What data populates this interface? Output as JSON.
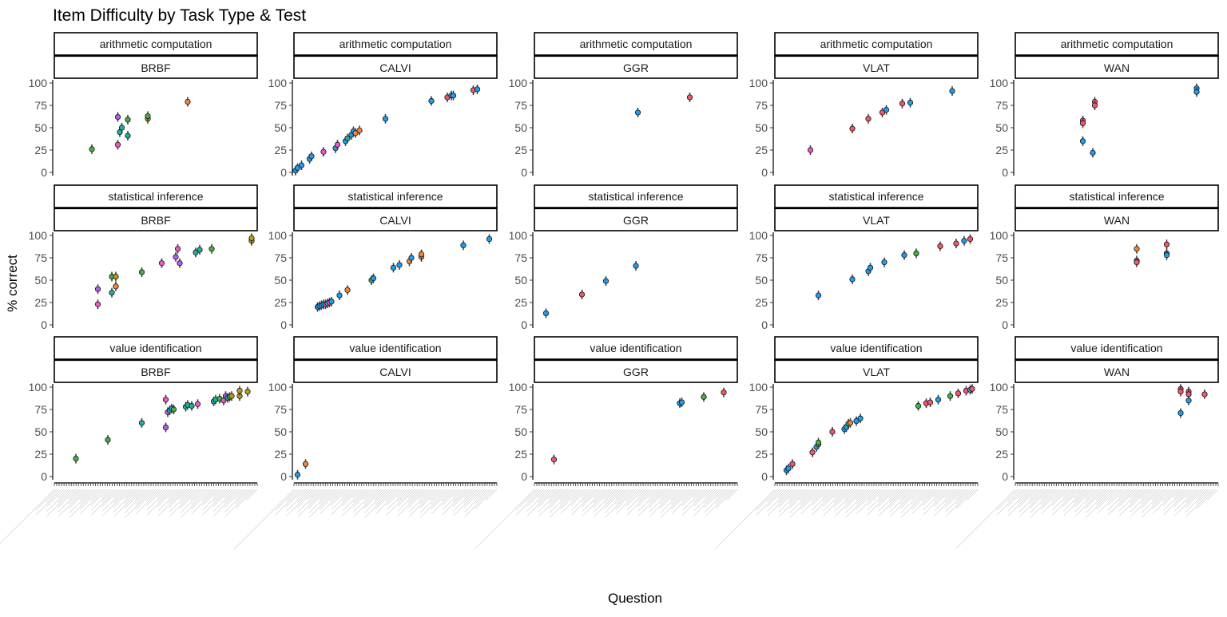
{
  "chart_data": {
    "type": "scatter",
    "title": "Item Difficulty by Task Type & Test",
    "xlabel": "Question",
    "ylabel": "% correct",
    "ylim": [
      0,
      100
    ],
    "yticks": [
      0,
      25,
      50,
      75,
      100
    ],
    "grid": false,
    "legend": "none",
    "error_bars": true,
    "x_tick_labels_shown": false,
    "x_scale": "question index (0-100)",
    "row_facets": [
      "arithmetic computation",
      "statistical inference",
      "value identification"
    ],
    "col_facets": [
      "BRBF",
      "CALVI",
      "GGR",
      "VLAT",
      "WAN"
    ],
    "point_colors": {
      "blue": "#1f9bf0",
      "red": "#f5546a",
      "orange": "#f0863c",
      "green": "#44b044",
      "olive": "#b89a1c",
      "purple": "#b05cf0",
      "magenta": "#f056c8",
      "teal": "#1cb09c"
    },
    "facets": [
      {
        "row": "arithmetic computation",
        "col": "BRBF",
        "points": [
          {
            "x": 18,
            "y": 26,
            "c": "green"
          },
          {
            "x": 31,
            "y": 31,
            "c": "magenta"
          },
          {
            "x": 31,
            "y": 62,
            "c": "purple"
          },
          {
            "x": 32,
            "y": 45,
            "c": "teal"
          },
          {
            "x": 33,
            "y": 50,
            "c": "teal"
          },
          {
            "x": 36,
            "y": 41,
            "c": "teal"
          },
          {
            "x": 36,
            "y": 59,
            "c": "green"
          },
          {
            "x": 46,
            "y": 60,
            "c": "olive"
          },
          {
            "x": 46,
            "y": 63,
            "c": "green"
          },
          {
            "x": 66,
            "y": 79,
            "c": "orange"
          }
        ]
      },
      {
        "row": "arithmetic computation",
        "col": "CALVI",
        "points": [
          {
            "x": 0,
            "y": 2,
            "c": "blue"
          },
          {
            "x": 1,
            "y": 5,
            "c": "blue"
          },
          {
            "x": 3,
            "y": 8,
            "c": "blue"
          },
          {
            "x": 7,
            "y": 15,
            "c": "blue"
          },
          {
            "x": 8,
            "y": 18,
            "c": "blue"
          },
          {
            "x": 14,
            "y": 23,
            "c": "magenta"
          },
          {
            "x": 20,
            "y": 27,
            "c": "blue"
          },
          {
            "x": 21,
            "y": 31,
            "c": "magenta"
          },
          {
            "x": 25,
            "y": 35,
            "c": "blue"
          },
          {
            "x": 26,
            "y": 38,
            "c": "teal"
          },
          {
            "x": 28,
            "y": 42,
            "c": "blue"
          },
          {
            "x": 29,
            "y": 46,
            "c": "blue"
          },
          {
            "x": 30,
            "y": 44,
            "c": "orange"
          },
          {
            "x": 32,
            "y": 47,
            "c": "orange"
          },
          {
            "x": 45,
            "y": 60,
            "c": "blue"
          },
          {
            "x": 68,
            "y": 80,
            "c": "blue"
          },
          {
            "x": 76,
            "y": 84,
            "c": "red"
          },
          {
            "x": 78,
            "y": 86,
            "c": "blue"
          },
          {
            "x": 79,
            "y": 86,
            "c": "blue"
          },
          {
            "x": 89,
            "y": 92,
            "c": "red"
          },
          {
            "x": 91,
            "y": 93,
            "c": "blue"
          }
        ]
      },
      {
        "row": "arithmetic computation",
        "col": "GGR",
        "points": [
          {
            "x": 51,
            "y": 67,
            "c": "blue"
          },
          {
            "x": 77,
            "y": 84,
            "c": "red"
          }
        ]
      },
      {
        "row": "arithmetic computation",
        "col": "VLAT",
        "points": [
          {
            "x": 17,
            "y": 25,
            "c": "magenta"
          },
          {
            "x": 38,
            "y": 49,
            "c": "red"
          },
          {
            "x": 46,
            "y": 60,
            "c": "red"
          },
          {
            "x": 53,
            "y": 67,
            "c": "red"
          },
          {
            "x": 55,
            "y": 70,
            "c": "blue"
          },
          {
            "x": 63,
            "y": 77,
            "c": "red"
          },
          {
            "x": 67,
            "y": 78,
            "c": "blue"
          },
          {
            "x": 88,
            "y": 91,
            "c": "blue"
          }
        ]
      },
      {
        "row": "arithmetic computation",
        "col": "WAN",
        "points": [
          {
            "x": 33,
            "y": 58,
            "c": "red"
          },
          {
            "x": 33,
            "y": 55,
            "c": "red"
          },
          {
            "x": 33,
            "y": 35,
            "c": "blue"
          },
          {
            "x": 38,
            "y": 22,
            "c": "blue"
          },
          {
            "x": 39,
            "y": 79,
            "c": "red"
          },
          {
            "x": 39,
            "y": 75,
            "c": "red"
          },
          {
            "x": 90,
            "y": 94,
            "c": "blue"
          },
          {
            "x": 90,
            "y": 90,
            "c": "blue"
          }
        ]
      },
      {
        "row": "statistical inference",
        "col": "BRBF",
        "points": [
          {
            "x": 21,
            "y": 23,
            "c": "magenta"
          },
          {
            "x": 21,
            "y": 40,
            "c": "purple"
          },
          {
            "x": 28,
            "y": 36,
            "c": "teal"
          },
          {
            "x": 28,
            "y": 54,
            "c": "green"
          },
          {
            "x": 30,
            "y": 43,
            "c": "orange"
          },
          {
            "x": 30,
            "y": 54,
            "c": "olive"
          },
          {
            "x": 43,
            "y": 59,
            "c": "green"
          },
          {
            "x": 53,
            "y": 69,
            "c": "magenta"
          },
          {
            "x": 60,
            "y": 76,
            "c": "purple"
          },
          {
            "x": 61,
            "y": 85,
            "c": "magenta"
          },
          {
            "x": 62,
            "y": 69,
            "c": "purple"
          },
          {
            "x": 70,
            "y": 81,
            "c": "teal"
          },
          {
            "x": 72,
            "y": 84,
            "c": "teal"
          },
          {
            "x": 78,
            "y": 85,
            "c": "green"
          },
          {
            "x": 98,
            "y": 94,
            "c": "olive"
          },
          {
            "x": 98,
            "y": 97,
            "c": "olive"
          }
        ]
      },
      {
        "row": "statistical inference",
        "col": "CALVI",
        "points": [
          {
            "x": 11,
            "y": 20,
            "c": "blue"
          },
          {
            "x": 12,
            "y": 21,
            "c": "blue"
          },
          {
            "x": 13,
            "y": 22,
            "c": "blue"
          },
          {
            "x": 14,
            "y": 23,
            "c": "blue"
          },
          {
            "x": 15,
            "y": 23,
            "c": "red"
          },
          {
            "x": 16,
            "y": 24,
            "c": "blue"
          },
          {
            "x": 17,
            "y": 25,
            "c": "magenta"
          },
          {
            "x": 18,
            "y": 26,
            "c": "blue"
          },
          {
            "x": 22,
            "y": 33,
            "c": "blue"
          },
          {
            "x": 26,
            "y": 39,
            "c": "orange"
          },
          {
            "x": 38,
            "y": 50,
            "c": "green"
          },
          {
            "x": 39,
            "y": 52,
            "c": "blue"
          },
          {
            "x": 49,
            "y": 64,
            "c": "blue"
          },
          {
            "x": 52,
            "y": 67,
            "c": "blue"
          },
          {
            "x": 57,
            "y": 71,
            "c": "orange"
          },
          {
            "x": 58,
            "y": 75,
            "c": "blue"
          },
          {
            "x": 63,
            "y": 76,
            "c": "orange"
          },
          {
            "x": 63,
            "y": 79,
            "c": "orange"
          },
          {
            "x": 84,
            "y": 89,
            "c": "blue"
          },
          {
            "x": 97,
            "y": 96,
            "c": "blue"
          }
        ]
      },
      {
        "row": "statistical inference",
        "col": "GGR",
        "points": [
          {
            "x": 5,
            "y": 13,
            "c": "blue"
          },
          {
            "x": 23,
            "y": 34,
            "c": "red"
          },
          {
            "x": 35,
            "y": 49,
            "c": "blue"
          },
          {
            "x": 50,
            "y": 66,
            "c": "blue"
          }
        ]
      },
      {
        "row": "statistical inference",
        "col": "VLAT",
        "points": [
          {
            "x": 21,
            "y": 33,
            "c": "blue"
          },
          {
            "x": 38,
            "y": 51,
            "c": "blue"
          },
          {
            "x": 46,
            "y": 60,
            "c": "blue"
          },
          {
            "x": 47,
            "y": 64,
            "c": "blue"
          },
          {
            "x": 54,
            "y": 70,
            "c": "blue"
          },
          {
            "x": 64,
            "y": 78,
            "c": "blue"
          },
          {
            "x": 70,
            "y": 80,
            "c": "green"
          },
          {
            "x": 82,
            "y": 88,
            "c": "red"
          },
          {
            "x": 90,
            "y": 91,
            "c": "red"
          },
          {
            "x": 94,
            "y": 94,
            "c": "blue"
          },
          {
            "x": 97,
            "y": 96,
            "c": "red"
          }
        ]
      },
      {
        "row": "statistical inference",
        "col": "WAN",
        "points": [
          {
            "x": 60,
            "y": 85,
            "c": "orange"
          },
          {
            "x": 60,
            "y": 72,
            "c": "teal"
          },
          {
            "x": 60,
            "y": 70,
            "c": "red"
          },
          {
            "x": 75,
            "y": 90,
            "c": "red"
          },
          {
            "x": 75,
            "y": 80,
            "c": "blue"
          },
          {
            "x": 75,
            "y": 78,
            "c": "blue"
          }
        ]
      },
      {
        "row": "value identification",
        "col": "BRBF",
        "points": [
          {
            "x": 10,
            "y": 20,
            "c": "green"
          },
          {
            "x": 26,
            "y": 41,
            "c": "green"
          },
          {
            "x": 43,
            "y": 60,
            "c": "teal"
          },
          {
            "x": 55,
            "y": 86,
            "c": "magenta"
          },
          {
            "x": 55,
            "y": 55,
            "c": "purple"
          },
          {
            "x": 56,
            "y": 72,
            "c": "purple"
          },
          {
            "x": 57,
            "y": 74,
            "c": "teal"
          },
          {
            "x": 58,
            "y": 76,
            "c": "blue"
          },
          {
            "x": 59,
            "y": 75,
            "c": "green"
          },
          {
            "x": 65,
            "y": 78,
            "c": "teal"
          },
          {
            "x": 66,
            "y": 80,
            "c": "teal"
          },
          {
            "x": 68,
            "y": 79,
            "c": "teal"
          },
          {
            "x": 71,
            "y": 81,
            "c": "magenta"
          },
          {
            "x": 79,
            "y": 84,
            "c": "teal"
          },
          {
            "x": 80,
            "y": 86,
            "c": "teal"
          },
          {
            "x": 82,
            "y": 87,
            "c": "green"
          },
          {
            "x": 84,
            "y": 85,
            "c": "magenta"
          },
          {
            "x": 85,
            "y": 90,
            "c": "purple"
          },
          {
            "x": 86,
            "y": 88,
            "c": "teal"
          },
          {
            "x": 87,
            "y": 89,
            "c": "green"
          },
          {
            "x": 88,
            "y": 90,
            "c": "olive"
          },
          {
            "x": 92,
            "y": 90,
            "c": "olive"
          },
          {
            "x": 92,
            "y": 96,
            "c": "olive"
          },
          {
            "x": 96,
            "y": 95,
            "c": "olive"
          }
        ]
      },
      {
        "row": "value identification",
        "col": "CALVI",
        "points": [
          {
            "x": 1,
            "y": 2,
            "c": "blue"
          },
          {
            "x": 5,
            "y": 14,
            "c": "orange"
          }
        ]
      },
      {
        "row": "value identification",
        "col": "GGR",
        "points": [
          {
            "x": 9,
            "y": 19,
            "c": "red"
          },
          {
            "x": 72,
            "y": 82,
            "c": "blue"
          },
          {
            "x": 73,
            "y": 83,
            "c": "blue"
          },
          {
            "x": 84,
            "y": 89,
            "c": "green"
          },
          {
            "x": 94,
            "y": 94,
            "c": "red"
          }
        ]
      },
      {
        "row": "value identification",
        "col": "VLAT",
        "points": [
          {
            "x": 5,
            "y": 7,
            "c": "blue"
          },
          {
            "x": 6,
            "y": 9,
            "c": "blue"
          },
          {
            "x": 8,
            "y": 14,
            "c": "red"
          },
          {
            "x": 18,
            "y": 27,
            "c": "red"
          },
          {
            "x": 20,
            "y": 33,
            "c": "blue"
          },
          {
            "x": 21,
            "y": 36,
            "c": "orange"
          },
          {
            "x": 21,
            "y": 38,
            "c": "green"
          },
          {
            "x": 28,
            "y": 50,
            "c": "red"
          },
          {
            "x": 34,
            "y": 53,
            "c": "blue"
          },
          {
            "x": 35,
            "y": 55,
            "c": "blue"
          },
          {
            "x": 36,
            "y": 59,
            "c": "green"
          },
          {
            "x": 37,
            "y": 60,
            "c": "orange"
          },
          {
            "x": 40,
            "y": 62,
            "c": "blue"
          },
          {
            "x": 42,
            "y": 65,
            "c": "blue"
          },
          {
            "x": 71,
            "y": 79,
            "c": "green"
          },
          {
            "x": 75,
            "y": 82,
            "c": "red"
          },
          {
            "x": 77,
            "y": 83,
            "c": "red"
          },
          {
            "x": 81,
            "y": 86,
            "c": "blue"
          },
          {
            "x": 87,
            "y": 90,
            "c": "green"
          },
          {
            "x": 91,
            "y": 93,
            "c": "red"
          },
          {
            "x": 95,
            "y": 96,
            "c": "red"
          },
          {
            "x": 97,
            "y": 97,
            "c": "blue"
          },
          {
            "x": 98,
            "y": 98,
            "c": "red"
          }
        ]
      },
      {
        "row": "value identification",
        "col": "WAN",
        "points": [
          {
            "x": 82,
            "y": 98,
            "c": "red"
          },
          {
            "x": 82,
            "y": 95,
            "c": "red"
          },
          {
            "x": 82,
            "y": 71,
            "c": "blue"
          },
          {
            "x": 86,
            "y": 95,
            "c": "red"
          },
          {
            "x": 86,
            "y": 92,
            "c": "red"
          },
          {
            "x": 86,
            "y": 85,
            "c": "blue"
          },
          {
            "x": 94,
            "y": 92,
            "c": "red"
          }
        ]
      }
    ]
  }
}
